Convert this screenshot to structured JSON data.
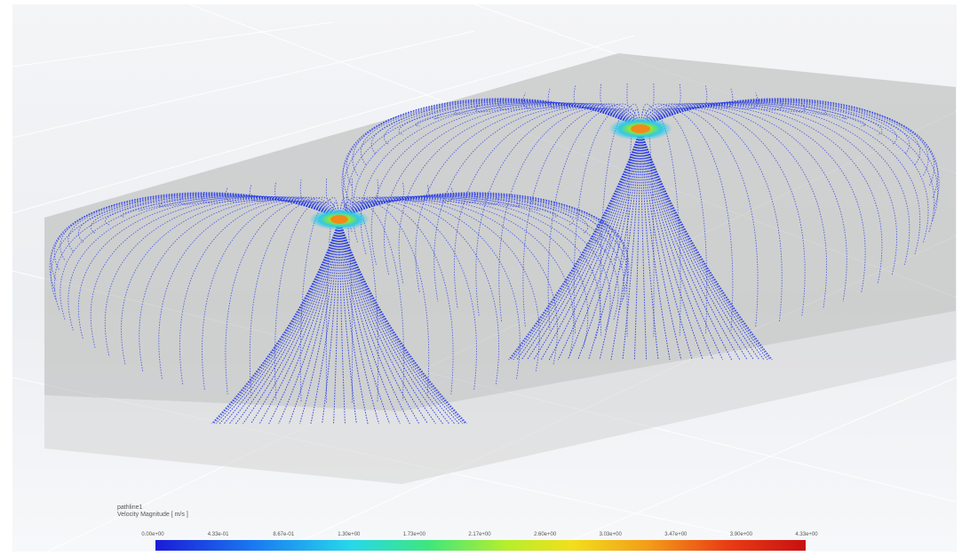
{
  "legend": {
    "title": "pathline1",
    "subtitle": "Velocity Magnitude [ m/s ]",
    "ticks": [
      "0.00e+00",
      "4.33e-01",
      "8.67e-01",
      "1.30e+00",
      "1.73e+00",
      "2.17e+00",
      "2.60e+00",
      "3.03e+00",
      "3.47e+00",
      "3.90e+00",
      "4.33e+00"
    ],
    "colormap": [
      "#1b1bd8",
      "#1a7ff2",
      "#27d7ea",
      "#3fe67d",
      "#b6ee2c",
      "#f2df1c",
      "#f39b18",
      "#ea3c14",
      "#c81010"
    ]
  },
  "colors": {
    "pathline": "#2a3de0",
    "domain_fill": "#bfc0bf",
    "background": "#eceef1"
  }
}
